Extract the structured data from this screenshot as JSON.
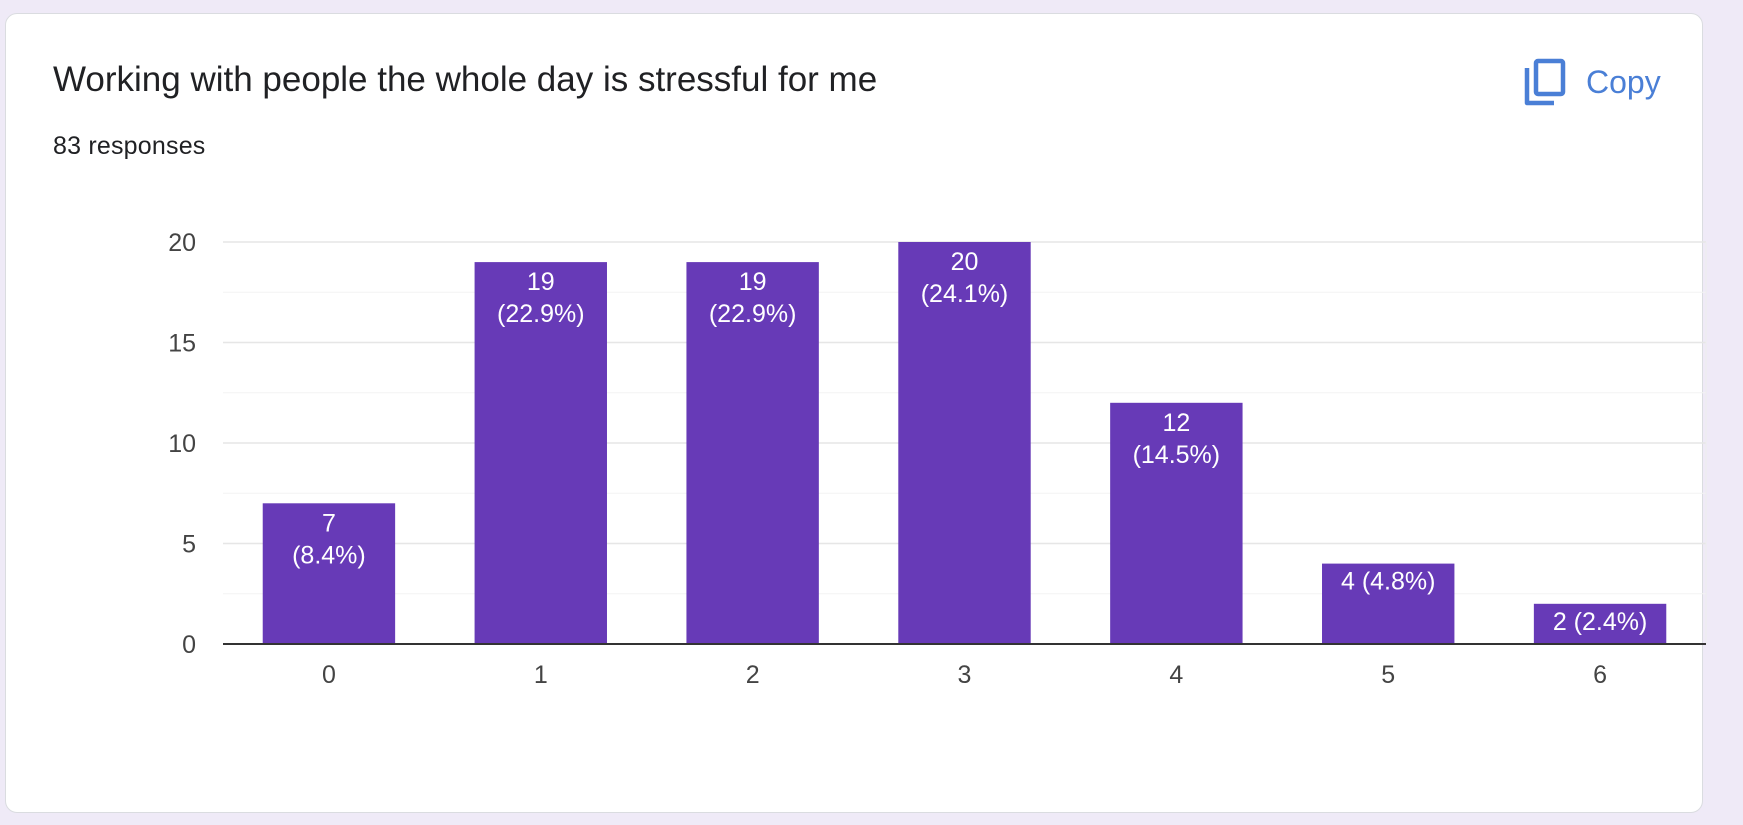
{
  "question": {
    "title": "Working with people the whole day is stressful for me",
    "responses": "83 responses"
  },
  "copy_button": {
    "label": "Copy",
    "icon": "copy-icon",
    "color": "#4a7fd6"
  },
  "chart_data": {
    "type": "bar",
    "categories": [
      "0",
      "1",
      "2",
      "3",
      "4",
      "5",
      "6"
    ],
    "values": [
      7,
      19,
      19,
      20,
      12,
      4,
      2
    ],
    "data_labels": [
      "7 (8.4%)",
      "19 (22.9%)",
      "19 (22.9%)",
      "20 (24.1%)",
      "12 (14.5%)",
      "4 (4.8%)",
      "2 (2.4%)"
    ],
    "ylim": [
      0,
      20
    ],
    "yticks": [
      0,
      5,
      10,
      15,
      20
    ],
    "grid": true,
    "bar_color": "#673ab7"
  }
}
